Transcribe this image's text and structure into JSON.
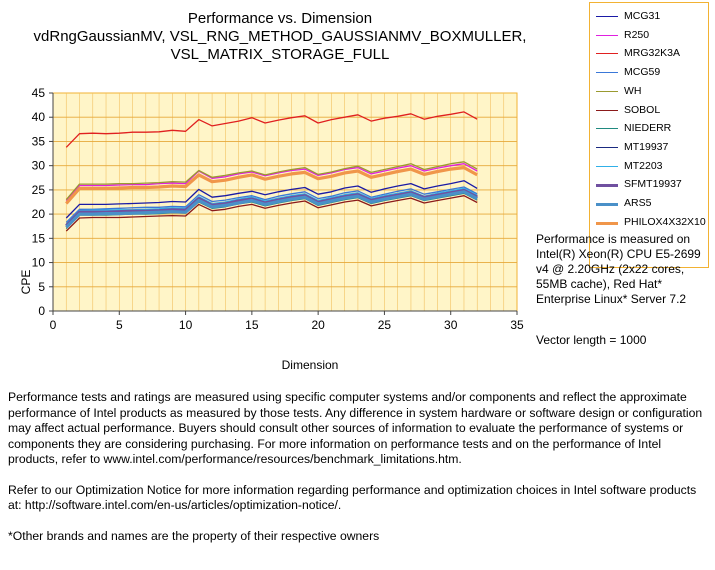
{
  "chart": {
    "title_lines": [
      "Performance vs. Dimension",
      "vdRngGaussianMV, VSL_RNG_METHOD_GAUSSIANMV_BOXMULLER,",
      "VSL_MATRIX_STORAGE_FULL"
    ]
  },
  "chart_data": {
    "type": "line",
    "title": "Performance vs. Dimension vdRngGaussianMV, VSL_RNG_METHOD_GAUSSIANMV_BOXMULLER, VSL_MATRIX_STORAGE_FULL",
    "xlabel": "Dimension",
    "ylabel": "CPE",
    "xlim": [
      0,
      35
    ],
    "ylim": [
      0,
      45
    ],
    "x_ticks": [
      0,
      5,
      10,
      15,
      20,
      25,
      30,
      35
    ],
    "y_ticks": [
      0,
      5,
      10,
      15,
      20,
      25,
      30,
      35,
      40,
      45
    ],
    "grid": true,
    "legend_position": "right",
    "x": [
      1,
      2,
      3,
      4,
      5,
      6,
      7,
      8,
      9,
      10,
      11,
      12,
      13,
      14,
      15,
      16,
      17,
      18,
      19,
      20,
      21,
      22,
      23,
      24,
      25,
      26,
      27,
      28,
      29,
      30,
      31,
      32
    ],
    "series": [
      {
        "name": "MCG31",
        "color": "#1a1aa6",
        "width": 1.3,
        "values": [
          19.2,
          22.0,
          22.0,
          22.0,
          22.1,
          22.2,
          22.3,
          22.4,
          22.6,
          22.5,
          25.1,
          23.5,
          23.8,
          24.3,
          24.7,
          24.0,
          24.6,
          25.1,
          25.5,
          24.1,
          24.6,
          25.4,
          25.8,
          24.5,
          25.2,
          25.8,
          26.3,
          25.2,
          25.8,
          26.3,
          26.9,
          25.3
        ]
      },
      {
        "name": "R250",
        "color": "#e020e0",
        "width": 1.3,
        "values": [
          22.8,
          25.9,
          25.9,
          25.9,
          26.0,
          26.1,
          26.1,
          26.3,
          26.4,
          26.3,
          28.9,
          27.4,
          27.7,
          28.3,
          28.7,
          27.9,
          28.5,
          29.0,
          29.3,
          28.0,
          28.5,
          29.2,
          29.6,
          28.3,
          28.9,
          29.5,
          30.0,
          28.9,
          29.5,
          30.0,
          30.4,
          28.9
        ]
      },
      {
        "name": "MRG32K3A",
        "color": "#e02020",
        "width": 1.3,
        "values": [
          33.8,
          36.6,
          36.7,
          36.6,
          36.7,
          36.9,
          36.9,
          37.0,
          37.3,
          37.1,
          39.5,
          38.2,
          38.7,
          39.2,
          39.9,
          38.8,
          39.4,
          39.9,
          40.3,
          38.8,
          39.5,
          40.0,
          40.5,
          39.2,
          39.8,
          40.2,
          40.7,
          39.6,
          40.2,
          40.6,
          41.1,
          39.6
        ]
      },
      {
        "name": "MCG59",
        "color": "#3a78d8",
        "width": 1.3,
        "values": [
          18.3,
          21.0,
          21.0,
          21.1,
          21.2,
          21.3,
          21.4,
          21.4,
          21.6,
          21.5,
          24.0,
          22.6,
          22.9,
          23.4,
          23.8,
          23.0,
          23.7,
          24.2,
          24.6,
          23.2,
          23.7,
          24.4,
          24.8,
          23.5,
          24.1,
          24.7,
          25.2,
          24.1,
          24.6,
          25.1,
          25.6,
          24.2
        ]
      },
      {
        "name": "WH",
        "color": "#9a9a30",
        "width": 1.3,
        "values": [
          23.0,
          26.2,
          26.2,
          26.2,
          26.3,
          26.3,
          26.4,
          26.5,
          26.7,
          26.6,
          29.0,
          27.6,
          28.0,
          28.5,
          28.9,
          28.1,
          28.7,
          29.2,
          29.6,
          28.2,
          28.7,
          29.4,
          29.9,
          28.6,
          29.2,
          29.8,
          30.4,
          29.2,
          29.8,
          30.4,
          30.8,
          29.3
        ]
      },
      {
        "name": "SOBOL",
        "color": "#8b1a1a",
        "width": 1.3,
        "values": [
          16.5,
          19.2,
          19.3,
          19.3,
          19.3,
          19.4,
          19.5,
          19.6,
          19.7,
          19.6,
          22.0,
          20.7,
          21.0,
          21.6,
          22.0,
          21.2,
          21.8,
          22.3,
          22.7,
          21.3,
          21.9,
          22.5,
          22.9,
          21.7,
          22.3,
          22.8,
          23.3,
          22.3,
          22.8,
          23.3,
          23.8,
          22.4
        ]
      },
      {
        "name": "NIEDERR",
        "color": "#208a80",
        "width": 1.3,
        "values": [
          17.0,
          19.8,
          19.8,
          19.8,
          19.9,
          20.0,
          20.0,
          20.1,
          20.3,
          20.2,
          22.5,
          21.2,
          21.5,
          22.1,
          22.5,
          21.7,
          22.3,
          22.8,
          23.2,
          21.8,
          22.4,
          23.0,
          23.4,
          22.2,
          22.8,
          23.3,
          23.8,
          22.8,
          23.3,
          23.8,
          24.3,
          22.9
        ]
      },
      {
        "name": "MT19937",
        "color": "#1a2a80",
        "width": 1.3,
        "values": [
          17.5,
          20.2,
          20.2,
          20.3,
          20.3,
          20.4,
          20.5,
          20.6,
          20.7,
          20.6,
          23.0,
          21.7,
          22.0,
          22.5,
          23.0,
          22.2,
          22.8,
          23.3,
          23.7,
          22.3,
          22.9,
          23.5,
          23.9,
          22.7,
          23.3,
          23.8,
          24.3,
          23.3,
          23.8,
          24.3,
          24.8,
          23.4
        ]
      },
      {
        "name": "MT2203",
        "color": "#30b0e8",
        "width": 1.3,
        "values": [
          18.0,
          20.7,
          20.8,
          20.8,
          20.9,
          20.9,
          21.0,
          21.1,
          21.3,
          21.2,
          23.6,
          22.2,
          22.5,
          23.1,
          23.5,
          22.7,
          23.3,
          23.8,
          24.2,
          22.8,
          23.4,
          24.0,
          24.4,
          23.2,
          23.8,
          24.3,
          24.8,
          23.7,
          24.3,
          24.8,
          25.3,
          23.9
        ]
      },
      {
        "name": "SFMT19937",
        "color": "#7050a0",
        "width": 3.2,
        "values": [
          17.6,
          20.4,
          20.4,
          20.4,
          20.5,
          20.6,
          20.6,
          20.7,
          20.9,
          20.8,
          23.2,
          21.8,
          22.1,
          22.7,
          23.1,
          22.3,
          22.9,
          23.4,
          23.8,
          22.4,
          23.0,
          23.6,
          24.0,
          22.8,
          23.4,
          23.9,
          24.4,
          23.4,
          23.9,
          24.4,
          24.9,
          23.5
        ]
      },
      {
        "name": "ARS5",
        "color": "#4a90c8",
        "width": 3.2,
        "values": [
          17.3,
          20.0,
          20.0,
          20.1,
          20.1,
          20.2,
          20.3,
          20.4,
          20.5,
          20.4,
          22.8,
          21.5,
          21.8,
          22.3,
          22.8,
          22.0,
          22.6,
          23.1,
          23.5,
          22.1,
          22.7,
          23.3,
          23.7,
          22.5,
          23.1,
          23.6,
          24.1,
          23.1,
          23.6,
          24.1,
          24.6,
          23.2
        ]
      },
      {
        "name": "PHILOX4X32X10",
        "color": "#f0964a",
        "width": 3.2,
        "values": [
          22.2,
          25.3,
          25.3,
          25.3,
          25.4,
          25.5,
          25.5,
          25.6,
          25.8,
          25.7,
          28.1,
          26.7,
          27.0,
          27.6,
          28.1,
          27.2,
          27.8,
          28.3,
          28.6,
          27.3,
          27.8,
          28.5,
          28.9,
          27.6,
          28.2,
          28.8,
          29.3,
          28.2,
          28.8,
          29.3,
          29.6,
          28.1
        ]
      }
    ]
  },
  "notes": {
    "performance_measured": "Performance is measured on Intel(R) Xeon(R) CPU E5-2699 v4 @ 2.20GHz (2x22 cores, 55MB cache), Red Hat* Enterprise Linux* Server 7.2",
    "vector_length": "Vector length = 1000"
  },
  "footer": {
    "disclaimer": "Performance tests and ratings are measured using specific computer systems and/or components and reflect the approximate performance of Intel products as measured by those tests. Any difference in system hardware or software design or configuration may affect actual performance. Buyers should consult other sources of information to evaluate the performance of systems or components they are considering purchasing. For more information on performance tests and on the performance of Intel products, refer to www.intel.com/performance/resources/benchmark_limitations.htm.",
    "optimization_notice": "Refer to our Optimization Notice for more information regarding performance and optimization choices in Intel software products at: http://software.intel.com/en-us/articles/optimization-notice/.",
    "trademarks": "*Other brands and names are the property of their respective owners"
  }
}
